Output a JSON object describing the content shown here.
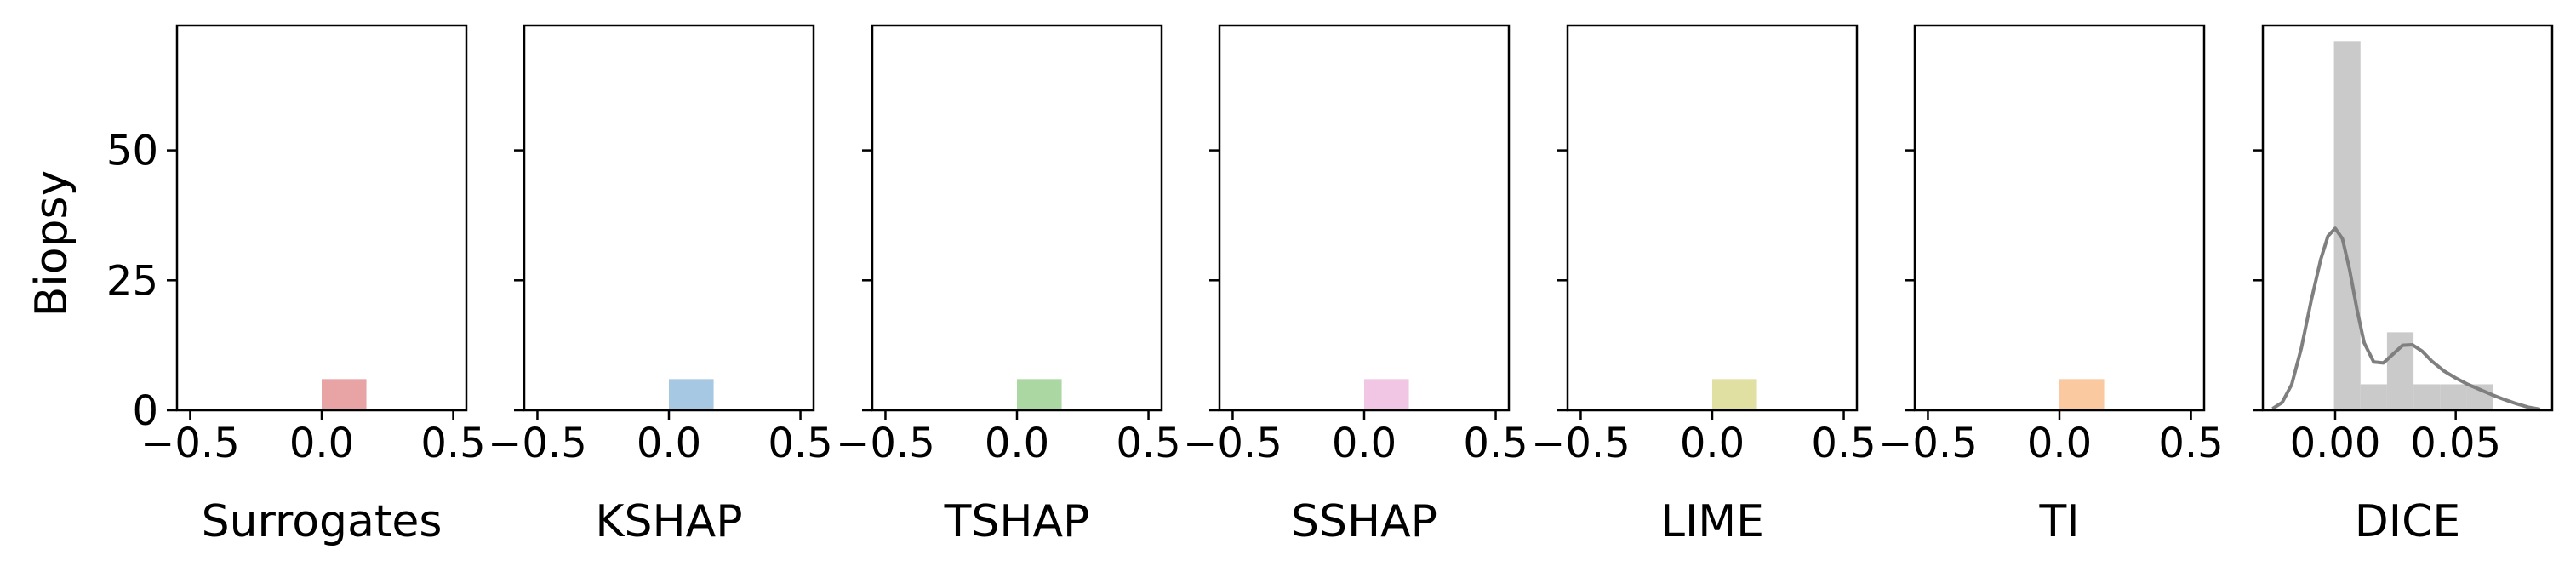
{
  "chart_data": [
    {
      "type": "bar",
      "xlabel": "Surrogates",
      "ylabel": "Biopsy",
      "xlim": [
        -0.55,
        0.55
      ],
      "ylim": [
        0,
        74
      ],
      "xticks": [
        -0.5,
        0.0,
        0.5
      ],
      "xtick_labels": [
        "−0.5",
        "0.0",
        "0.5"
      ],
      "yticks": [
        0,
        25,
        50
      ],
      "ytick_labels": [
        "0",
        "25",
        "50"
      ],
      "bins": [
        {
          "x0": 0.0,
          "x1": 0.17,
          "value": 6
        }
      ],
      "color": "#e8a3a4"
    },
    {
      "type": "bar",
      "xlabel": "KSHAP",
      "ylabel": "",
      "xlim": [
        -0.55,
        0.55
      ],
      "ylim": [
        0,
        74
      ],
      "xticks": [
        -0.5,
        0.0,
        0.5
      ],
      "xtick_labels": [
        "−0.5",
        "0.0",
        "0.5"
      ],
      "yticks": [
        0,
        25,
        50
      ],
      "ytick_labels": [],
      "bins": [
        {
          "x0": 0.0,
          "x1": 0.17,
          "value": 6
        }
      ],
      "color": "#a7c8e2"
    },
    {
      "type": "bar",
      "xlabel": "TSHAP",
      "ylabel": "",
      "xlim": [
        -0.55,
        0.55
      ],
      "ylim": [
        0,
        74
      ],
      "xticks": [
        -0.5,
        0.0,
        0.5
      ],
      "xtick_labels": [
        "−0.5",
        "0.0",
        "0.5"
      ],
      "yticks": [
        0,
        25,
        50
      ],
      "ytick_labels": [],
      "bins": [
        {
          "x0": 0.0,
          "x1": 0.17,
          "value": 6
        }
      ],
      "color": "#abd8a2"
    },
    {
      "type": "bar",
      "xlabel": "SSHAP",
      "ylabel": "",
      "xlim": [
        -0.55,
        0.55
      ],
      "ylim": [
        0,
        74
      ],
      "xticks": [
        -0.5,
        0.0,
        0.5
      ],
      "xtick_labels": [
        "−0.5",
        "0.0",
        "0.5"
      ],
      "yticks": [
        0,
        25,
        50
      ],
      "ytick_labels": [],
      "bins": [
        {
          "x0": 0.0,
          "x1": 0.17,
          "value": 6
        }
      ],
      "color": "#f0c6e4"
    },
    {
      "type": "bar",
      "xlabel": "LIME",
      "ylabel": "",
      "xlim": [
        -0.55,
        0.55
      ],
      "ylim": [
        0,
        74
      ],
      "xticks": [
        -0.5,
        0.0,
        0.5
      ],
      "xtick_labels": [
        "−0.5",
        "0.0",
        "0.5"
      ],
      "yticks": [
        0,
        25,
        50
      ],
      "ytick_labels": [],
      "bins": [
        {
          "x0": 0.0,
          "x1": 0.17,
          "value": 6
        }
      ],
      "color": "#dfe0a2"
    },
    {
      "type": "bar",
      "xlabel": "TI",
      "ylabel": "",
      "xlim": [
        -0.55,
        0.55
      ],
      "ylim": [
        0,
        74
      ],
      "xticks": [
        -0.5,
        0.0,
        0.5
      ],
      "xtick_labels": [
        "−0.5",
        "0.0",
        "0.5"
      ],
      "yticks": [
        0,
        25,
        50
      ],
      "ytick_labels": [],
      "bins": [
        {
          "x0": 0.0,
          "x1": 0.17,
          "value": 6
        }
      ],
      "color": "#fbc99f"
    },
    {
      "type": "bar",
      "xlabel": "DICE",
      "ylabel": "",
      "xlim": [
        -0.03,
        0.09
      ],
      "ylim": [
        0,
        74
      ],
      "xticks": [
        0.0,
        0.05
      ],
      "xtick_labels": [
        "0.00",
        "0.05"
      ],
      "yticks": [
        0,
        25,
        50
      ],
      "ytick_labels": [],
      "bins": [
        {
          "x0": -0.0005,
          "x1": 0.0105,
          "value": 71
        },
        {
          "x0": 0.0105,
          "x1": 0.0215,
          "value": 5
        },
        {
          "x0": 0.0215,
          "x1": 0.0325,
          "value": 15
        },
        {
          "x0": 0.0325,
          "x1": 0.0435,
          "value": 5
        },
        {
          "x0": 0.0435,
          "x1": 0.0545,
          "value": 5
        },
        {
          "x0": 0.0545,
          "x1": 0.0655,
          "value": 5
        }
      ],
      "color": "#cacaca",
      "kde": {
        "color": "#7f7f7f",
        "x": [
          -0.026,
          -0.022,
          -0.018,
          -0.014,
          -0.01,
          -0.006,
          -0.003,
          0.0,
          0.003,
          0.006,
          0.009,
          0.012,
          0.016,
          0.02,
          0.024,
          0.028,
          0.032,
          0.036,
          0.04,
          0.045,
          0.05,
          0.055,
          0.06,
          0.065,
          0.07,
          0.075,
          0.08,
          0.085
        ],
        "y": [
          0.3,
          1.5,
          5,
          12,
          21,
          29,
          33.5,
          35,
          33,
          27,
          19.5,
          13,
          9.3,
          9.1,
          10.8,
          12.5,
          12.6,
          11.4,
          9.5,
          7.6,
          6.2,
          5,
          4,
          3,
          2.1,
          1.3,
          0.6,
          0.2
        ]
      }
    }
  ]
}
